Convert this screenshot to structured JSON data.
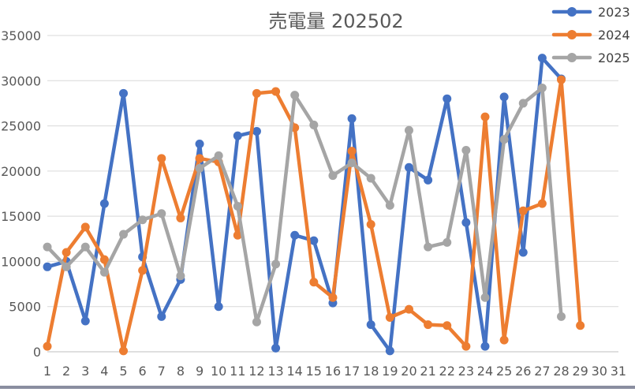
{
  "chart_data": {
    "type": "line",
    "title": "売電量 202502",
    "xlabel": "",
    "ylabel": "",
    "categories": [
      "1",
      "2",
      "3",
      "4",
      "5",
      "6",
      "7",
      "8",
      "9",
      "10",
      "11",
      "12",
      "13",
      "14",
      "15",
      "16",
      "17",
      "18",
      "19",
      "20",
      "21",
      "22",
      "23",
      "24",
      "25",
      "26",
      "27",
      "28",
      "29",
      "30",
      "31"
    ],
    "ylim": [
      0,
      35000
    ],
    "yticks": [
      0,
      5000,
      10000,
      15000,
      20000,
      25000,
      30000,
      35000
    ],
    "grid": true,
    "legend": "top-right",
    "series": [
      {
        "name": "2023",
        "color": "#4472c4",
        "values": [
          9400,
          10000,
          3400,
          16400,
          28600,
          10500,
          3900,
          8000,
          23000,
          5000,
          23900,
          24400,
          400,
          12900,
          12300,
          5400,
          25800,
          3000,
          100,
          20400,
          19000,
          28000,
          14300,
          600,
          28200,
          11000,
          32500,
          30200,
          null,
          null,
          null
        ]
      },
      {
        "name": "2024",
        "color": "#ed7d31",
        "values": [
          600,
          11000,
          13800,
          10200,
          100,
          9000,
          21400,
          14800,
          21400,
          21000,
          12900,
          28600,
          28800,
          24800,
          7700,
          6000,
          22200,
          14100,
          3800,
          4700,
          3000,
          2900,
          600,
          26000,
          1300,
          15600,
          16400,
          30100,
          2900,
          null,
          null
        ]
      },
      {
        "name": "2025",
        "color": "#a5a5a5",
        "values": [
          11600,
          9400,
          11600,
          8800,
          13000,
          14600,
          15300,
          8400,
          20300,
          21700,
          16100,
          3300,
          9700,
          28400,
          25100,
          19500,
          20900,
          19200,
          16200,
          24500,
          11600,
          12100,
          22300,
          6000,
          23500,
          27500,
          29200,
          3900,
          null,
          null,
          null
        ]
      }
    ]
  }
}
